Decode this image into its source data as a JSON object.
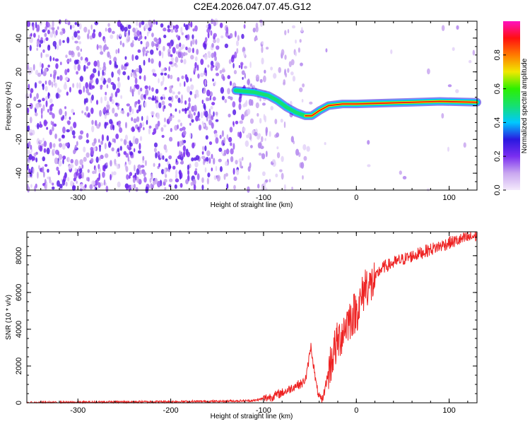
{
  "title": "C2E4.2026.047.07.45.G12",
  "chart_data": [
    {
      "type": "heatmap",
      "name": "spectrogram",
      "xlabel": "Height of straight line (km)",
      "ylabel": "Frequency (Hz)",
      "xlim": [
        -355,
        130
      ],
      "ylim": [
        -50,
        50
      ],
      "xticks": [
        -300,
        -200,
        -100,
        0,
        100
      ],
      "yticks": [
        -40,
        -20,
        0,
        20,
        40
      ],
      "colorbar": {
        "label": "Normalized spectral amplitude",
        "range": [
          0,
          1
        ],
        "ticks": [
          0.0,
          0.2,
          0.4,
          0.6,
          0.8
        ],
        "tick_labels": [
          "0.0",
          "0.2",
          "0.4",
          "0.6",
          "0.8"
        ],
        "colors": [
          "#f4eafc",
          "#c9a7f0",
          "#7a2ef0",
          "#2a18e0",
          "#00c8ff",
          "#16e070",
          "#2cf000",
          "#f0e800",
          "#ff7a00",
          "#ff1010",
          "#ff10c0"
        ]
      },
      "signal_track": [
        {
          "x": -130,
          "y": 9
        },
        {
          "x": -110,
          "y": 8
        },
        {
          "x": -95,
          "y": 6
        },
        {
          "x": -85,
          "y": 3
        },
        {
          "x": -75,
          "y": -1
        },
        {
          "x": -65,
          "y": -4
        },
        {
          "x": -55,
          "y": -6
        },
        {
          "x": -48,
          "y": -6
        },
        {
          "x": -40,
          "y": -3
        },
        {
          "x": -30,
          "y": 0
        },
        {
          "x": -15,
          "y": 1
        },
        {
          "x": 0,
          "y": 1
        },
        {
          "x": 30,
          "y": 1.5
        },
        {
          "x": 60,
          "y": 2
        },
        {
          "x": 90,
          "y": 2.5
        },
        {
          "x": 130,
          "y": 2
        }
      ]
    },
    {
      "type": "line",
      "name": "snr",
      "xlabel": "Height of straight line (km)",
      "ylabel": "SNR (10 * v/v)",
      "xlim": [
        -355,
        130
      ],
      "ylim": [
        0,
        9300
      ],
      "xticks": [
        -300,
        -200,
        -100,
        0,
        100
      ],
      "yticks": [
        0,
        2000,
        4000,
        6000,
        8000
      ],
      "color": "#ee2222",
      "series": [
        {
          "name": "SNR",
          "x": [
            -355,
            -250,
            -150,
            -110,
            -90,
            -75,
            -65,
            -58,
            -54,
            -51,
            -49,
            -46,
            -43,
            -40,
            -37,
            -35,
            -30,
            -25,
            -20,
            -10,
            0,
            5,
            10,
            15,
            20,
            25,
            30,
            50,
            75,
            100,
            130
          ],
          "y": [
            0,
            50,
            80,
            120,
            350,
            650,
            950,
            1050,
            1400,
            2400,
            3100,
            2000,
            900,
            300,
            80,
            500,
            1700,
            2700,
            3300,
            4400,
            5000,
            5500,
            6500,
            6300,
            6700,
            7200,
            7400,
            7800,
            8250,
            8700,
            9100
          ]
        }
      ]
    }
  ]
}
